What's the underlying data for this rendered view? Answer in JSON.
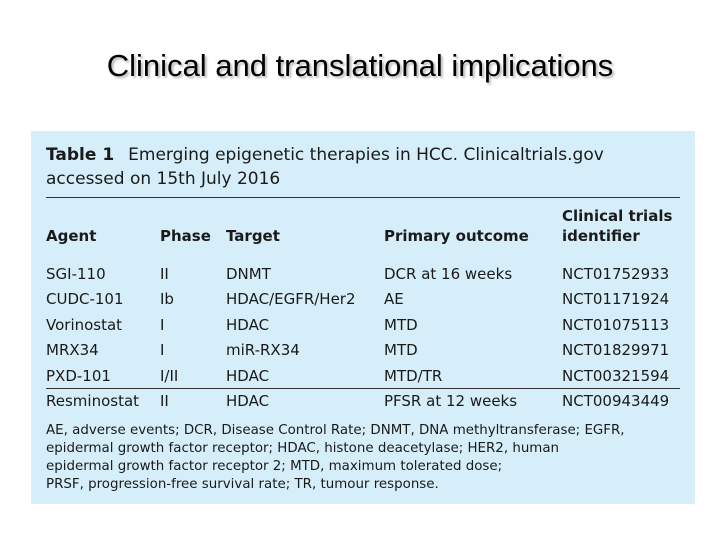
{
  "slide": {
    "title": "Clinical and translational implications"
  },
  "table": {
    "label": "Table 1",
    "caption_line1": "Emerging epigenetic therapies in HCC. Clinicaltrials.gov",
    "caption_line2": "accessed on 15th July 2016",
    "headers": {
      "agent": "Agent",
      "phase": "Phase",
      "target": "Target",
      "outcome": "Primary outcome",
      "identifier_line1": "Clinical trials",
      "identifier_line2": "identifier"
    },
    "rows": [
      {
        "agent": "SGI-110",
        "phase": "II",
        "target": "DNMT",
        "outcome": "DCR at 16 weeks",
        "identifier": "NCT01752933"
      },
      {
        "agent": "CUDC-101",
        "phase": "Ib",
        "target": "HDAC/EGFR/Her2",
        "outcome": "AE",
        "identifier": "NCT01171924"
      },
      {
        "agent": "Vorinostat",
        "phase": "I",
        "target": "HDAC",
        "outcome": "MTD",
        "identifier": "NCT01075113"
      },
      {
        "agent": "MRX34",
        "phase": "I",
        "target": "miR-RX34",
        "outcome": "MTD",
        "identifier": "NCT01829971"
      },
      {
        "agent": "PXD-101",
        "phase": "I/II",
        "target": "HDAC",
        "outcome": "MTD/TR",
        "identifier": "NCT00321594"
      },
      {
        "agent": "Resminostat",
        "phase": "II",
        "target": "HDAC",
        "outcome": "PFSR at 12 weeks",
        "identifier": "NCT00943449"
      }
    ],
    "footnote_lines": [
      "AE, adverse events; DCR, Disease Control Rate; DNMT, DNA methyltransferase; EGFR,",
      "epidermal growth factor receptor; HDAC, histone deacetylase; HER2, human",
      "epidermal growth factor receptor 2; MTD, maximum tolerated dose;",
      "PRSF, progression-free survival rate; TR, tumour response."
    ]
  },
  "colors": {
    "table_background": "#d6eef9",
    "text": "#1a1a1a"
  }
}
